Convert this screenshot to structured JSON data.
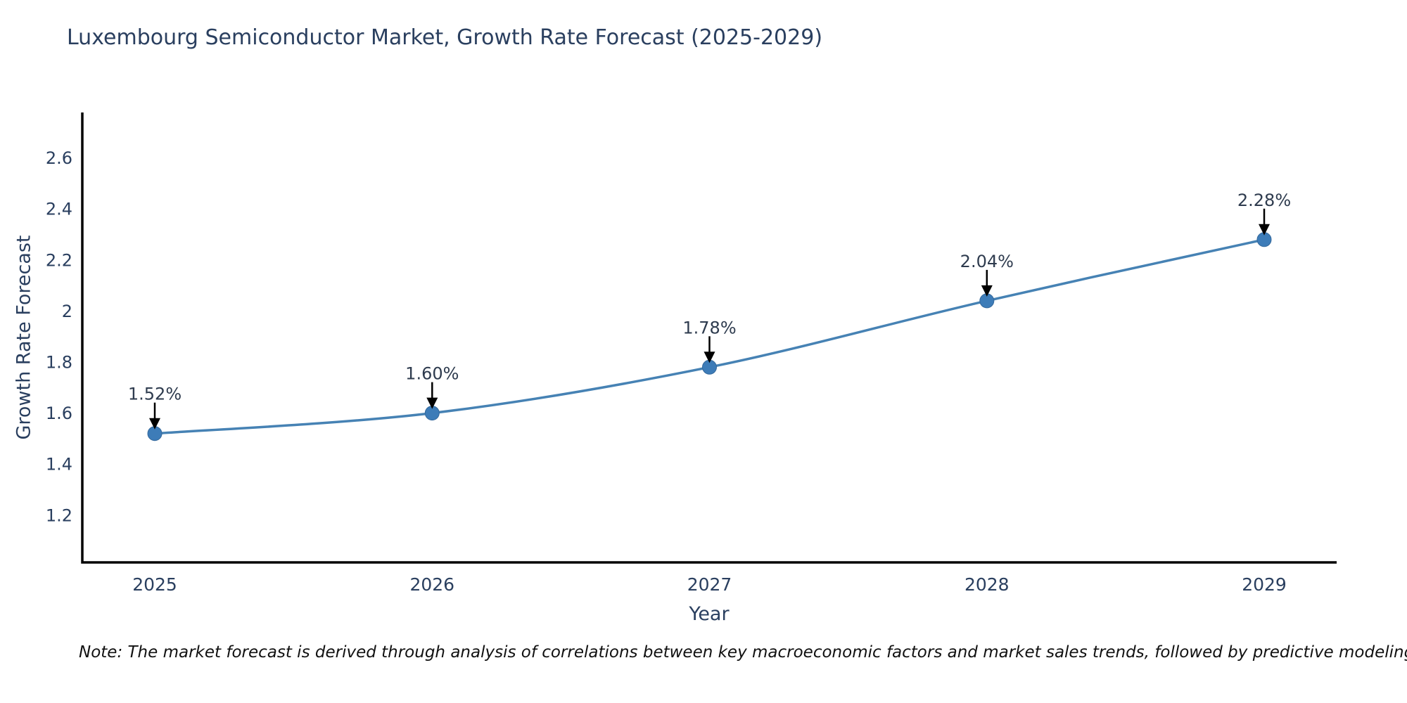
{
  "page": {
    "background": "#ffffff"
  },
  "chart_data": {
    "type": "line",
    "title": "Luxembourg Semiconductor Market, Growth Rate Forecast (2025-2029)",
    "xlabel": "Year",
    "ylabel": "Growth Rate Forecast",
    "categories": [
      "2025",
      "2026",
      "2027",
      "2028",
      "2029"
    ],
    "series": [
      {
        "name": "Growth Rate Forecast",
        "values": [
          1.52,
          1.6,
          1.78,
          2.04,
          2.28
        ],
        "point_labels": [
          "1.52%",
          "1.60%",
          "1.78%",
          "2.04%",
          "2.28%"
        ]
      }
    ],
    "ytick_values": [
      1.2,
      1.4,
      1.6,
      1.8,
      2,
      2.2,
      2.4,
      2.6
    ],
    "ytick_labels": [
      "1.2",
      "1.4",
      "1.6",
      "1.8",
      "2",
      "2.2",
      "2.4",
      "2.6"
    ],
    "ylim": [
      1.015,
      2.778
    ],
    "grid": false,
    "legend_position": "none",
    "line_color": "#4682b4",
    "marker_color": "#3d7cb8",
    "marker_edge_color": "#35699c",
    "axis_color": "#000000",
    "text_color": "#2a3f5f",
    "annotation_color": "#2e3b4e",
    "annotation_arrow_color": "#000000"
  },
  "note": {
    "text": "Note: The market forecast is derived through analysis of correlations between key macroeconomic factors and market sales trends, followed by predictive modeling to project future sales"
  }
}
